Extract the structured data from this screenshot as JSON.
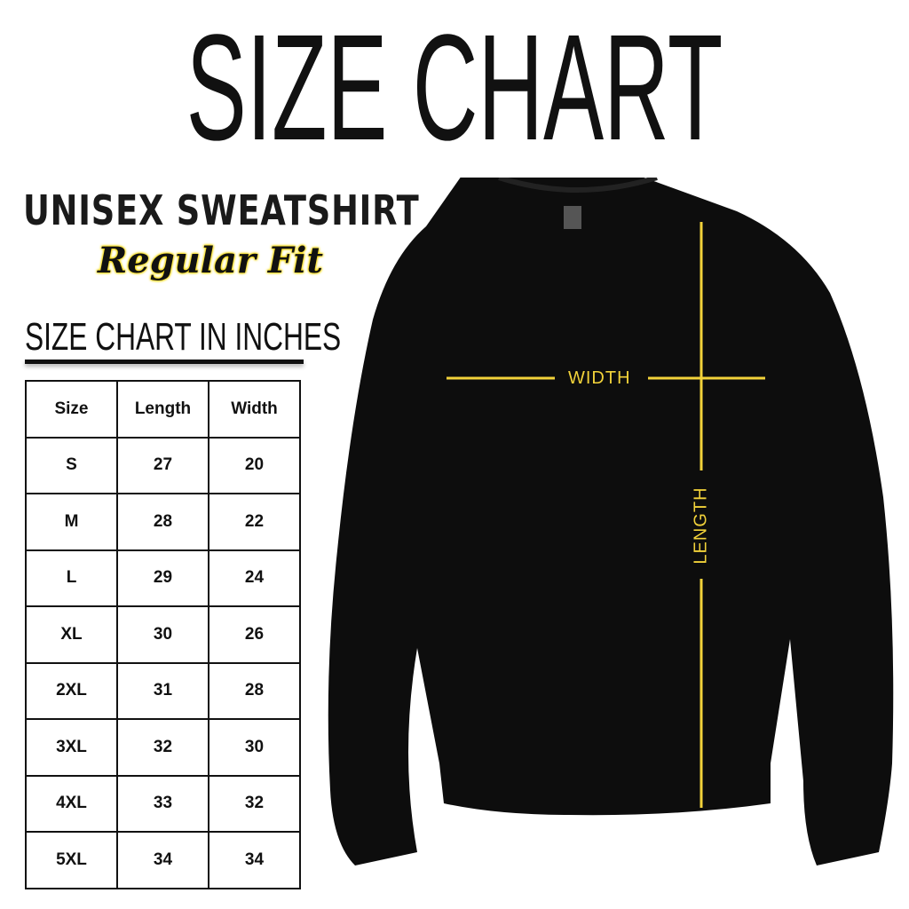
{
  "title": "SIZE CHART",
  "product": "UNISEX SWEATSHIRT",
  "fit": "Regular Fit",
  "table_caption": "SIZE CHART IN INCHES",
  "accent_color": "#f2d23a",
  "headers": [
    "Size",
    "Length",
    "Width"
  ],
  "rows": [
    [
      "S",
      "27",
      "20"
    ],
    [
      "M",
      "28",
      "22"
    ],
    [
      "L",
      "29",
      "24"
    ],
    [
      "XL",
      "30",
      "26"
    ],
    [
      "2XL",
      "31",
      "28"
    ],
    [
      "3XL",
      "32",
      "30"
    ],
    [
      "4XL",
      "33",
      "32"
    ],
    [
      "5XL",
      "34",
      "34"
    ]
  ],
  "measurements": {
    "width_label": "WIDTH",
    "length_label": "LENGTH"
  }
}
